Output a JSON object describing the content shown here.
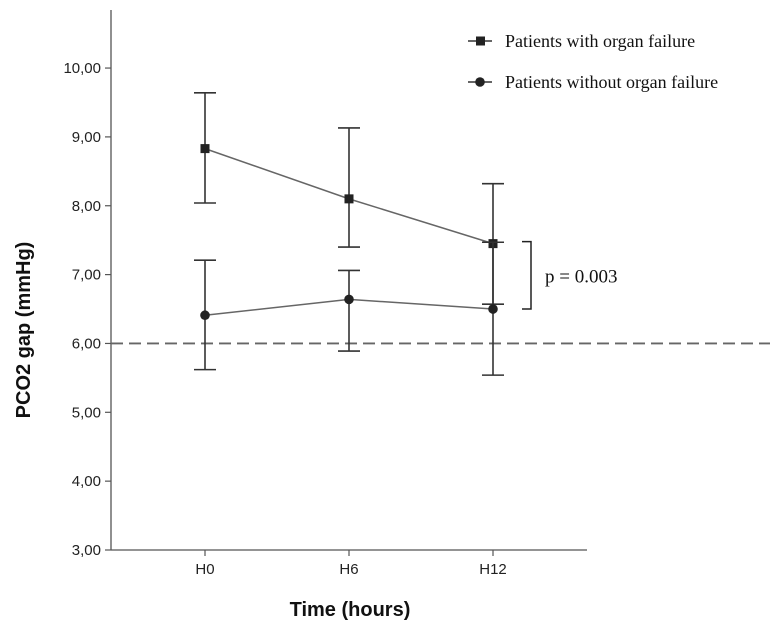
{
  "chart_data": {
    "type": "line",
    "xlabel": "Time (hours)",
    "ylabel": "PCO2 gap (mmHg)",
    "categories": [
      "H0",
      "H6",
      "H12"
    ],
    "ylim": [
      3,
      10.5
    ],
    "yticks": [
      "3,00",
      "4,00",
      "5,00",
      "6,00",
      "7,00",
      "8,00",
      "9,00",
      "10,00"
    ],
    "ytick_values": [
      3,
      4,
      5,
      6,
      7,
      8,
      9,
      10
    ],
    "grid": false,
    "legend_position": "top-right",
    "reference_line": {
      "y": 6.0,
      "style": "dashed"
    },
    "series": [
      {
        "name": "Patients with organ failure",
        "marker": "square",
        "values": [
          8.83,
          8.1,
          7.45
        ],
        "error_low": [
          8.04,
          7.4,
          6.57
        ],
        "error_high": [
          9.64,
          9.13,
          8.32
        ]
      },
      {
        "name": "Patients without organ failure",
        "marker": "circle",
        "values": [
          6.41,
          6.64,
          6.5
        ],
        "error_low": [
          5.62,
          5.89,
          5.54
        ],
        "error_high": [
          7.21,
          7.06,
          7.47
        ]
      }
    ],
    "annotation": {
      "text": "p = 0.003",
      "y_range": [
        6.5,
        7.45
      ]
    }
  }
}
